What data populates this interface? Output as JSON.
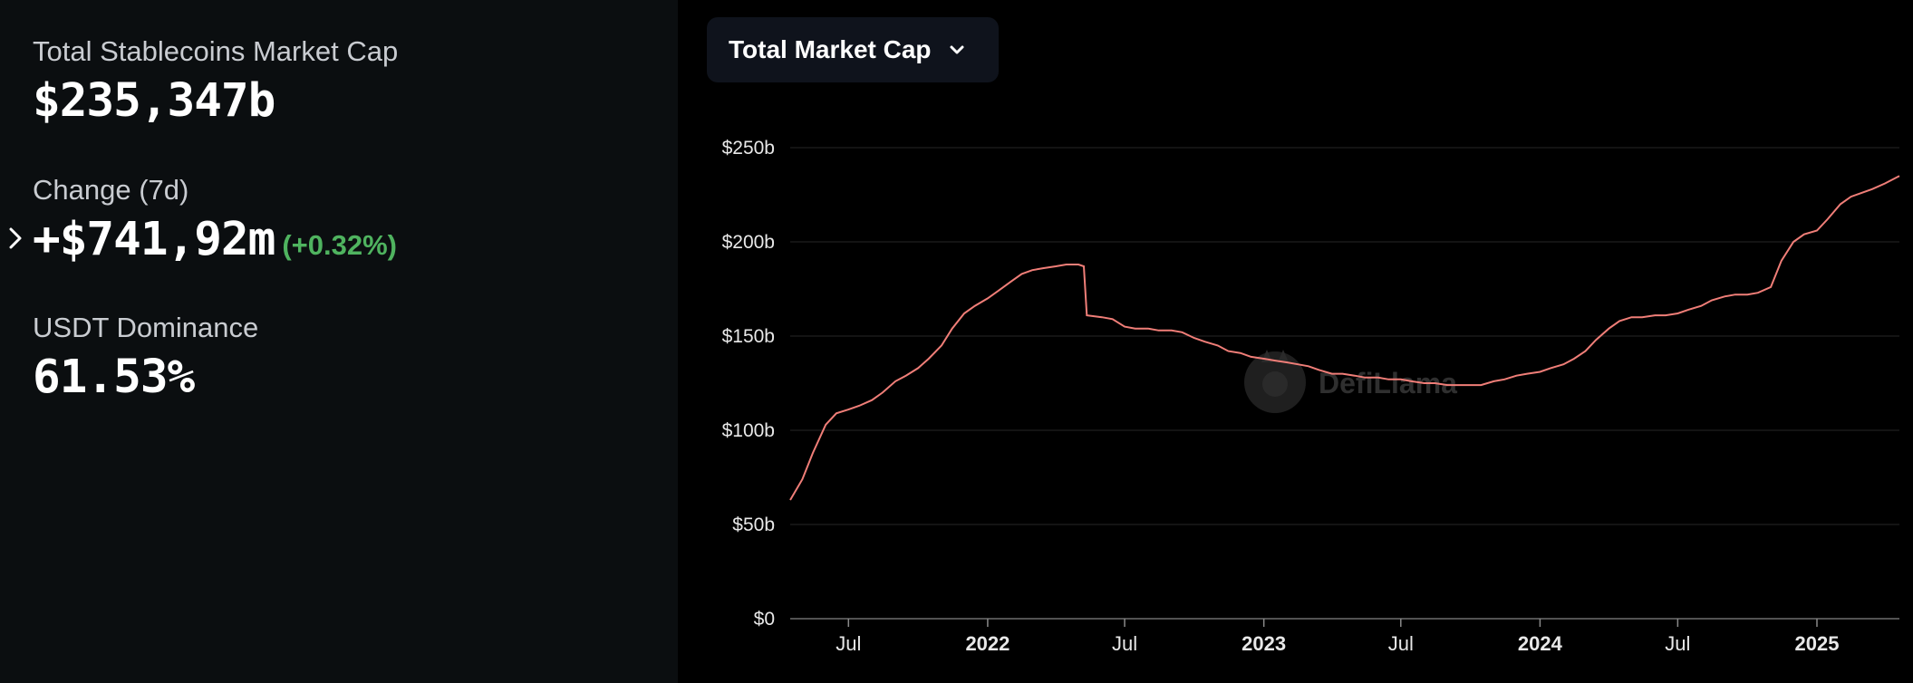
{
  "stats": {
    "total_label": "Total Stablecoins Market Cap",
    "total_value": "$235,347b",
    "change_label": "Change (7d)",
    "change_value": "+$741,92m",
    "change_pct": "(+0.32%)",
    "dominance_label": "USDT Dominance",
    "dominance_value": "61.53%"
  },
  "dropdown": {
    "label": "Total Market Cap",
    "icon": "chevron-down-icon"
  },
  "watermark": {
    "text": "DefiLlama",
    "icon": "llama-logo-icon"
  },
  "colors": {
    "line": "#f07e78",
    "positive": "#4fb35f",
    "panel_bg": "#0b0e10",
    "dropdown_bg": "#0f131c"
  },
  "chart_data": {
    "type": "line",
    "title": "",
    "xlabel": "",
    "ylabel": "",
    "ylim": [
      0,
      250
    ],
    "y_unit": "b (USD billions)",
    "y_ticks": [
      {
        "value": 0,
        "label": "$0"
      },
      {
        "value": 50,
        "label": "$50b"
      },
      {
        "value": 100,
        "label": "$100b"
      },
      {
        "value": 150,
        "label": "$150b"
      },
      {
        "value": 200,
        "label": "$200b"
      },
      {
        "value": 250,
        "label": "$250b"
      }
    ],
    "x_ticks": [
      {
        "date": "2021-07-01",
        "label": "Jul",
        "bold": false
      },
      {
        "date": "2022-01-01",
        "label": "2022",
        "bold": true
      },
      {
        "date": "2022-07-01",
        "label": "Jul",
        "bold": false
      },
      {
        "date": "2023-01-01",
        "label": "2023",
        "bold": true
      },
      {
        "date": "2023-07-01",
        "label": "Jul",
        "bold": false
      },
      {
        "date": "2024-01-01",
        "label": "2024",
        "bold": true
      },
      {
        "date": "2024-07-01",
        "label": "Jul",
        "bold": false
      },
      {
        "date": "2025-01-01",
        "label": "2025",
        "bold": true
      }
    ],
    "x_range": [
      "2021-04-15",
      "2025-04-20"
    ],
    "grid": true,
    "series": [
      {
        "points": [
          [
            "2021-04-15",
            63
          ],
          [
            "2021-05-01",
            74
          ],
          [
            "2021-05-15",
            88
          ],
          [
            "2021-06-01",
            103
          ],
          [
            "2021-06-15",
            109
          ],
          [
            "2021-07-01",
            111
          ],
          [
            "2021-07-15",
            113
          ],
          [
            "2021-08-01",
            116
          ],
          [
            "2021-08-15",
            120
          ],
          [
            "2021-09-01",
            126
          ],
          [
            "2021-09-15",
            129
          ],
          [
            "2021-10-01",
            133
          ],
          [
            "2021-10-15",
            138
          ],
          [
            "2021-11-01",
            145
          ],
          [
            "2021-11-15",
            154
          ],
          [
            "2021-12-01",
            162
          ],
          [
            "2021-12-15",
            166
          ],
          [
            "2022-01-01",
            170
          ],
          [
            "2022-01-15",
            174
          ],
          [
            "2022-02-01",
            179
          ],
          [
            "2022-02-15",
            183
          ],
          [
            "2022-03-01",
            185
          ],
          [
            "2022-03-15",
            186
          ],
          [
            "2022-04-01",
            187
          ],
          [
            "2022-04-15",
            188
          ],
          [
            "2022-05-01",
            188
          ],
          [
            "2022-05-08",
            187
          ],
          [
            "2022-05-12",
            161
          ],
          [
            "2022-06-01",
            160
          ],
          [
            "2022-06-15",
            159
          ],
          [
            "2022-07-01",
            155
          ],
          [
            "2022-07-15",
            154
          ],
          [
            "2022-08-01",
            154
          ],
          [
            "2022-08-15",
            153
          ],
          [
            "2022-09-01",
            153
          ],
          [
            "2022-09-15",
            152
          ],
          [
            "2022-10-01",
            149
          ],
          [
            "2022-10-15",
            147
          ],
          [
            "2022-11-01",
            145
          ],
          [
            "2022-11-15",
            142
          ],
          [
            "2022-12-01",
            141
          ],
          [
            "2022-12-15",
            139
          ],
          [
            "2023-01-01",
            138
          ],
          [
            "2023-01-15",
            137
          ],
          [
            "2023-02-01",
            136
          ],
          [
            "2023-02-15",
            135
          ],
          [
            "2023-03-01",
            134
          ],
          [
            "2023-03-15",
            132
          ],
          [
            "2023-04-01",
            130
          ],
          [
            "2023-04-15",
            130
          ],
          [
            "2023-05-01",
            129
          ],
          [
            "2023-05-15",
            128
          ],
          [
            "2023-06-01",
            128
          ],
          [
            "2023-06-15",
            127
          ],
          [
            "2023-07-01",
            127
          ],
          [
            "2023-07-15",
            126
          ],
          [
            "2023-08-01",
            125
          ],
          [
            "2023-08-15",
            125
          ],
          [
            "2023-09-01",
            124
          ],
          [
            "2023-09-15",
            124
          ],
          [
            "2023-10-01",
            124
          ],
          [
            "2023-10-15",
            124
          ],
          [
            "2023-11-01",
            126
          ],
          [
            "2023-11-15",
            127
          ],
          [
            "2023-12-01",
            129
          ],
          [
            "2023-12-15",
            130
          ],
          [
            "2024-01-01",
            131
          ],
          [
            "2024-01-15",
            133
          ],
          [
            "2024-02-01",
            135
          ],
          [
            "2024-02-15",
            138
          ],
          [
            "2024-03-01",
            142
          ],
          [
            "2024-03-15",
            148
          ],
          [
            "2024-04-01",
            154
          ],
          [
            "2024-04-15",
            158
          ],
          [
            "2024-05-01",
            160
          ],
          [
            "2024-05-15",
            160
          ],
          [
            "2024-06-01",
            161
          ],
          [
            "2024-06-15",
            161
          ],
          [
            "2024-07-01",
            162
          ],
          [
            "2024-07-15",
            164
          ],
          [
            "2024-08-01",
            166
          ],
          [
            "2024-08-15",
            169
          ],
          [
            "2024-09-01",
            171
          ],
          [
            "2024-09-15",
            172
          ],
          [
            "2024-10-01",
            172
          ],
          [
            "2024-10-15",
            173
          ],
          [
            "2024-11-01",
            176
          ],
          [
            "2024-11-15",
            190
          ],
          [
            "2024-12-01",
            200
          ],
          [
            "2024-12-15",
            204
          ],
          [
            "2025-01-01",
            206
          ],
          [
            "2025-01-15",
            212
          ],
          [
            "2025-02-01",
            220
          ],
          [
            "2025-02-15",
            224
          ],
          [
            "2025-03-01",
            226
          ],
          [
            "2025-03-15",
            228
          ],
          [
            "2025-04-01",
            231
          ],
          [
            "2025-04-20",
            235
          ]
        ]
      }
    ]
  }
}
